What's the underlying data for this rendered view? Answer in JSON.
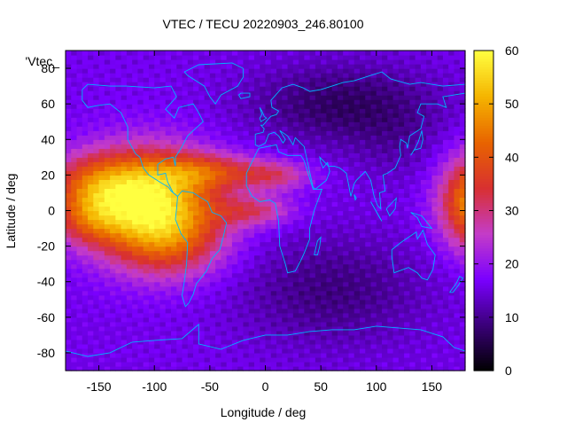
{
  "chart_data": {
    "type": "heatmap",
    "title": "VTEC / TECU 20220903_246.80100",
    "xlabel": "Longitude / deg",
    "ylabel": "Latitude / deg",
    "key_label": "'Vtec_",
    "xlim": [
      -180,
      180
    ],
    "ylim": [
      -90,
      90
    ],
    "xticks": [
      -150,
      -100,
      -50,
      0,
      50,
      100,
      150
    ],
    "yticks": [
      -80,
      -60,
      -40,
      -20,
      0,
      20,
      40,
      60,
      80
    ],
    "colorbar": {
      "min": 0,
      "max": 60,
      "ticks": [
        0,
        10,
        20,
        30,
        40,
        50,
        60
      ]
    },
    "grid": false,
    "overlay": "coastlines",
    "palette": {
      "stops": [
        "#000000",
        "#3a0078",
        "#7a00ff",
        "#c43cc8",
        "#d83030",
        "#e86400",
        "#f5b400",
        "#ffff40"
      ],
      "coastline": "#00b4ff"
    },
    "anomalies": [
      {
        "lon": -105,
        "lat": 5,
        "sigma_lon": 42,
        "sigma_lat": 20,
        "peak": 40
      },
      {
        "lon": -85,
        "lat": -18,
        "sigma_lon": 35,
        "sigma_lat": 15,
        "peak": 14
      },
      {
        "lon": -155,
        "lat": 15,
        "sigma_lon": 30,
        "sigma_lat": 12,
        "peak": 16
      },
      {
        "lon": -160,
        "lat": -5,
        "sigma_lon": 22,
        "sigma_lat": 10,
        "peak": 12
      },
      {
        "lon": -50,
        "lat": 22,
        "sigma_lon": 35,
        "sigma_lat": 7,
        "peak": 16
      },
      {
        "lon": 10,
        "lat": 20,
        "sigma_lon": 22,
        "sigma_lat": 6,
        "peak": 12
      },
      {
        "lon": -10,
        "lat": 0,
        "sigma_lon": 25,
        "sigma_lat": 6,
        "peak": 13
      },
      {
        "lon": 190,
        "lat": 5,
        "sigma_lon": 22,
        "sigma_lat": 18,
        "peak": 34
      },
      {
        "lon": 70,
        "lat": 60,
        "sigma_lon": 60,
        "sigma_lat": 16,
        "peak": -9
      },
      {
        "lon": 60,
        "lat": -45,
        "sigma_lon": 60,
        "sigma_lat": 22,
        "peak": -7
      },
      {
        "lon": 120,
        "lat": 35,
        "sigma_lon": 30,
        "sigma_lat": 15,
        "peak": -3
      }
    ],
    "background_value": 16
  }
}
